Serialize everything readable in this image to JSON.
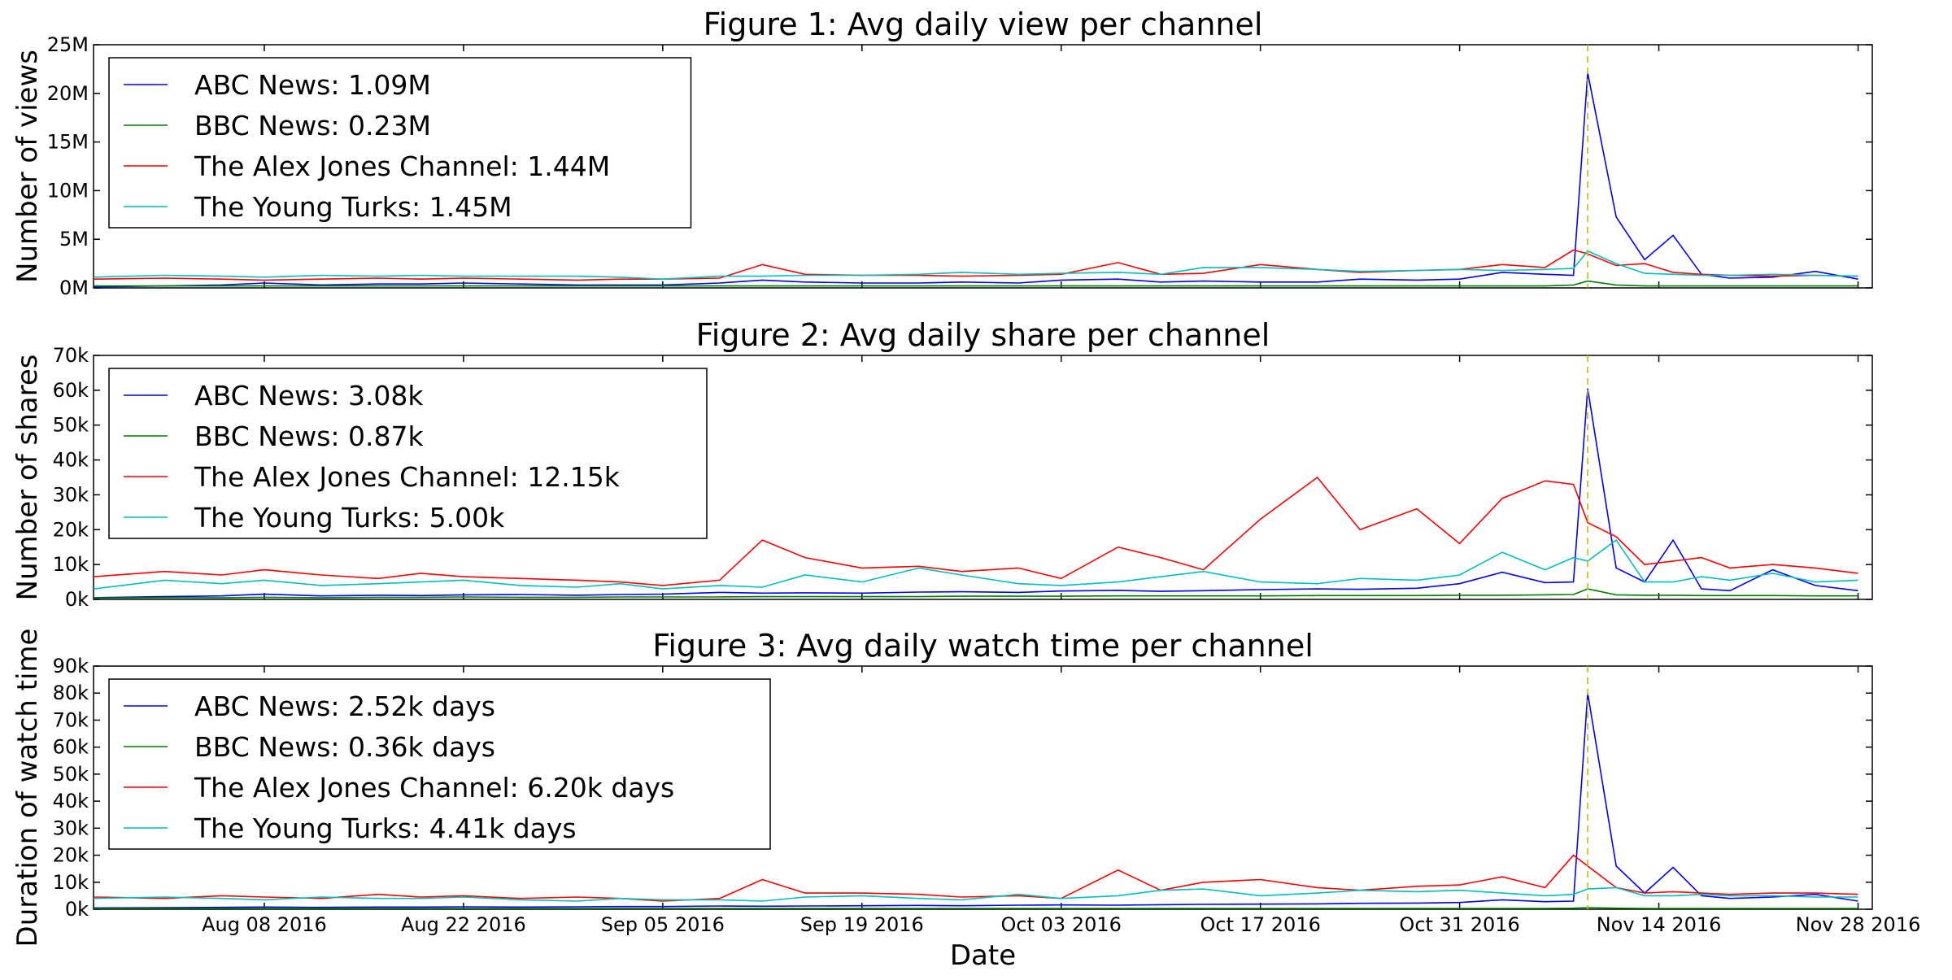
{
  "chart_data": [
    {
      "type": "line",
      "title": "Figure 1: Avg daily view per channel",
      "ylabel": "Number of views",
      "xlabel": "",
      "x": [
        "2016-07-27",
        "2016-08-01",
        "2016-08-05",
        "2016-08-08",
        "2016-08-12",
        "2016-08-16",
        "2016-08-19",
        "2016-08-22",
        "2016-08-26",
        "2016-08-30",
        "2016-09-02",
        "2016-09-05",
        "2016-09-09",
        "2016-09-12",
        "2016-09-15",
        "2016-09-19",
        "2016-09-23",
        "2016-09-26",
        "2016-09-30",
        "2016-10-03",
        "2016-10-07",
        "2016-10-10",
        "2016-10-13",
        "2016-10-17",
        "2016-10-21",
        "2016-10-24",
        "2016-10-28",
        "2016-10-31",
        "2016-11-03",
        "2016-11-06",
        "2016-11-08",
        "2016-11-09",
        "2016-11-11",
        "2016-11-13",
        "2016-11-15",
        "2016-11-17",
        "2016-11-19",
        "2016-11-22",
        "2016-11-25",
        "2016-11-28"
      ],
      "series": [
        {
          "name": "ABC News: 1.09M",
          "color": "#0000ff",
          "values": [
            0.1,
            0.2,
            0.3,
            0.5,
            0.3,
            0.4,
            0.4,
            0.5,
            0.4,
            0.3,
            0.3,
            0.3,
            0.5,
            0.8,
            0.6,
            0.5,
            0.5,
            0.6,
            0.5,
            0.8,
            0.9,
            0.6,
            0.7,
            0.6,
            0.6,
            0.9,
            0.8,
            0.9,
            1.6,
            1.4,
            1.3,
            22.1,
            7.3,
            2.9,
            5.4,
            1.4,
            1.0,
            1.1,
            1.7,
            0.9
          ]
        },
        {
          "name": "BBC News: 0.23M",
          "color": "#008000",
          "values": [
            0.2,
            0.2,
            0.2,
            0.2,
            0.2,
            0.2,
            0.2,
            0.2,
            0.2,
            0.2,
            0.2,
            0.2,
            0.2,
            0.2,
            0.2,
            0.2,
            0.2,
            0.2,
            0.2,
            0.2,
            0.2,
            0.2,
            0.2,
            0.2,
            0.2,
            0.2,
            0.2,
            0.2,
            0.2,
            0.2,
            0.3,
            0.7,
            0.3,
            0.2,
            0.2,
            0.2,
            0.2,
            0.2,
            0.2,
            0.2
          ]
        },
        {
          "name": "The Alex Jones Channel: 1.44M",
          "color": "#ff0000",
          "values": [
            0.9,
            1.0,
            0.9,
            0.8,
            0.9,
            1.0,
            0.9,
            1.0,
            0.9,
            0.8,
            0.9,
            0.9,
            1.0,
            2.4,
            1.4,
            1.3,
            1.3,
            1.2,
            1.3,
            1.4,
            2.6,
            1.4,
            1.5,
            2.4,
            1.9,
            1.6,
            1.8,
            1.9,
            2.4,
            2.1,
            3.9,
            3.5,
            2.3,
            2.5,
            1.6,
            1.4,
            1.3,
            1.2,
            1.3,
            1.2
          ]
        },
        {
          "name": "The Young Turks: 1.45M",
          "color": "#00bfbf",
          "values": [
            1.1,
            1.3,
            1.2,
            1.1,
            1.3,
            1.2,
            1.3,
            1.2,
            1.2,
            1.2,
            1.1,
            0.9,
            1.2,
            1.2,
            1.3,
            1.3,
            1.4,
            1.6,
            1.4,
            1.5,
            1.6,
            1.4,
            2.1,
            2.1,
            1.9,
            1.7,
            1.8,
            1.9,
            1.8,
            1.9,
            2.0,
            3.8,
            2.5,
            1.5,
            1.4,
            1.3,
            1.3,
            1.4,
            1.3,
            1.2
          ]
        }
      ],
      "ylim": [
        0,
        25
      ],
      "ytick_labels": [
        "0M",
        "5M",
        "10M",
        "15M",
        "20M",
        "25M"
      ],
      "xtick_labels": [
        "Aug 08 2016",
        "Aug 22 2016",
        "Sep 05 2016",
        "Sep 19 2016",
        "Oct 03 2016",
        "Oct 17 2016",
        "Oct 31 2016",
        "Nov 14 2016",
        "Nov 28 2016"
      ],
      "vline_x": "2016-11-09",
      "legend": "upper-left",
      "grid": false
    },
    {
      "type": "line",
      "title": "Figure 2: Avg daily share per channel",
      "ylabel": "Number of shares",
      "xlabel": "",
      "x": [
        "2016-07-27",
        "2016-08-01",
        "2016-08-05",
        "2016-08-08",
        "2016-08-12",
        "2016-08-16",
        "2016-08-19",
        "2016-08-22",
        "2016-08-26",
        "2016-08-30",
        "2016-09-02",
        "2016-09-05",
        "2016-09-09",
        "2016-09-12",
        "2016-09-15",
        "2016-09-19",
        "2016-09-23",
        "2016-09-26",
        "2016-09-30",
        "2016-10-03",
        "2016-10-07",
        "2016-10-10",
        "2016-10-13",
        "2016-10-17",
        "2016-10-21",
        "2016-10-24",
        "2016-10-28",
        "2016-10-31",
        "2016-11-03",
        "2016-11-06",
        "2016-11-08",
        "2016-11-09",
        "2016-11-11",
        "2016-11-13",
        "2016-11-15",
        "2016-11-17",
        "2016-11-19",
        "2016-11-22",
        "2016-11-25",
        "2016-11-28"
      ],
      "series": [
        {
          "name": "ABC News: 3.08k",
          "color": "#0000ff",
          "values": [
            0.5,
            0.8,
            1.0,
            1.5,
            1.0,
            1.2,
            1.1,
            1.3,
            1.4,
            1.2,
            1.4,
            1.5,
            2.0,
            1.8,
            1.9,
            1.8,
            2.1,
            2.2,
            2.0,
            2.4,
            2.6,
            2.3,
            2.5,
            2.8,
            3.0,
            2.9,
            3.2,
            4.5,
            7.8,
            4.8,
            5.0,
            60.5,
            9.0,
            5.0,
            17.0,
            3.0,
            2.5,
            8.5,
            4.0,
            2.5
          ]
        },
        {
          "name": "BBC News: 0.87k",
          "color": "#008000",
          "values": [
            0.4,
            0.5,
            0.5,
            0.6,
            0.5,
            0.6,
            0.6,
            0.7,
            0.6,
            0.6,
            0.7,
            0.7,
            0.7,
            0.8,
            0.8,
            0.8,
            0.8,
            0.9,
            0.9,
            0.9,
            1.0,
            1.0,
            1.0,
            1.0,
            1.1,
            1.1,
            1.1,
            1.2,
            1.2,
            1.3,
            1.4,
            3.0,
            1.3,
            1.2,
            1.2,
            1.1,
            1.1,
            1.1,
            1.0,
            1.0
          ]
        },
        {
          "name": "The Alex Jones Channel: 12.15k",
          "color": "#ff0000",
          "values": [
            6.5,
            8.0,
            7.0,
            8.5,
            7.0,
            6.0,
            7.5,
            6.5,
            6.0,
            5.5,
            5.0,
            4.0,
            5.5,
            17.0,
            12.0,
            9.0,
            9.5,
            8.0,
            9.0,
            6.0,
            15.0,
            12.0,
            8.5,
            23.0,
            35.0,
            20.0,
            26.0,
            16.0,
            29.0,
            34.0,
            33.0,
            22.0,
            18.0,
            10.0,
            11.0,
            12.0,
            9.0,
            10.0,
            9.0,
            7.5
          ]
        },
        {
          "name": "The Young Turks: 5.00k",
          "color": "#00bfbf",
          "values": [
            3.0,
            5.5,
            4.5,
            5.5,
            4.0,
            4.5,
            5.0,
            5.5,
            4.0,
            3.5,
            4.5,
            3.0,
            4.0,
            3.5,
            7.0,
            5.0,
            9.0,
            7.0,
            4.5,
            4.0,
            5.0,
            6.5,
            8.0,
            5.0,
            4.5,
            6.0,
            5.5,
            7.0,
            13.5,
            8.5,
            12.0,
            11.0,
            17.0,
            5.0,
            5.0,
            6.5,
            5.5,
            7.5,
            5.0,
            5.5
          ]
        }
      ],
      "ylim": [
        0,
        70
      ],
      "ytick_labels": [
        "0k",
        "10k",
        "20k",
        "30k",
        "40k",
        "50k",
        "60k",
        "70k"
      ],
      "xtick_labels": [
        "Aug 08 2016",
        "Aug 22 2016",
        "Sep 05 2016",
        "Sep 19 2016",
        "Oct 03 2016",
        "Oct 17 2016",
        "Oct 31 2016",
        "Nov 14 2016",
        "Nov 28 2016"
      ],
      "vline_x": "2016-11-09",
      "legend": "upper-left",
      "grid": false
    },
    {
      "type": "line",
      "title": "Figure 3: Avg daily watch time per channel",
      "ylabel": "Duration of watch time",
      "xlabel": "Date",
      "x": [
        "2016-07-27",
        "2016-08-01",
        "2016-08-05",
        "2016-08-08",
        "2016-08-12",
        "2016-08-16",
        "2016-08-19",
        "2016-08-22",
        "2016-08-26",
        "2016-08-30",
        "2016-09-02",
        "2016-09-05",
        "2016-09-09",
        "2016-09-12",
        "2016-09-15",
        "2016-09-19",
        "2016-09-23",
        "2016-09-26",
        "2016-09-30",
        "2016-10-03",
        "2016-10-07",
        "2016-10-10",
        "2016-10-13",
        "2016-10-17",
        "2016-10-21",
        "2016-10-24",
        "2016-10-28",
        "2016-10-31",
        "2016-11-03",
        "2016-11-06",
        "2016-11-08",
        "2016-11-09",
        "2016-11-11",
        "2016-11-13",
        "2016-11-15",
        "2016-11-17",
        "2016-11-19",
        "2016-11-22",
        "2016-11-25",
        "2016-11-28"
      ],
      "series": [
        {
          "name": "ABC News: 2.52k days",
          "color": "#0000ff",
          "values": [
            0.5,
            0.6,
            0.7,
            0.8,
            0.7,
            0.8,
            0.8,
            0.9,
            0.8,
            0.9,
            1.0,
            1.0,
            1.2,
            1.1,
            1.2,
            1.3,
            1.4,
            1.3,
            1.5,
            1.6,
            1.5,
            1.7,
            1.8,
            1.9,
            2.0,
            2.2,
            2.3,
            2.5,
            3.5,
            2.8,
            3.0,
            80.0,
            16.0,
            6.0,
            15.5,
            5.0,
            4.0,
            4.5,
            5.5,
            3.0
          ]
        },
        {
          "name": "BBC News: 0.36k days",
          "color": "#008000",
          "values": [
            0.3,
            0.3,
            0.3,
            0.3,
            0.3,
            0.3,
            0.3,
            0.3,
            0.3,
            0.3,
            0.3,
            0.3,
            0.3,
            0.3,
            0.3,
            0.3,
            0.3,
            0.3,
            0.3,
            0.3,
            0.3,
            0.3,
            0.3,
            0.3,
            0.3,
            0.3,
            0.3,
            0.3,
            0.3,
            0.3,
            0.4,
            0.6,
            0.4,
            0.3,
            0.3,
            0.3,
            0.3,
            0.3,
            0.3,
            0.3
          ]
        },
        {
          "name": "The Alex Jones Channel: 6.20k days",
          "color": "#ff0000",
          "values": [
            4.5,
            4.0,
            5.0,
            4.5,
            4.0,
            5.5,
            4.5,
            5.0,
            4.0,
            4.5,
            4.0,
            3.0,
            4.0,
            11.0,
            6.0,
            6.0,
            5.5,
            4.5,
            5.0,
            4.0,
            14.5,
            7.0,
            10.0,
            11.0,
            8.0,
            7.0,
            8.5,
            9.0,
            12.0,
            8.0,
            20.0,
            16.0,
            8.0,
            6.0,
            6.5,
            6.0,
            5.5,
            6.0,
            6.0,
            5.5
          ]
        },
        {
          "name": "The Young Turks: 4.41k days",
          "color": "#00bfbf",
          "values": [
            4.0,
            4.5,
            4.0,
            3.5,
            4.5,
            4.0,
            4.0,
            4.5,
            3.5,
            3.0,
            4.0,
            3.5,
            3.5,
            3.0,
            4.5,
            5.0,
            4.0,
            3.5,
            5.5,
            4.0,
            5.0,
            7.0,
            7.5,
            5.0,
            6.0,
            7.0,
            6.5,
            7.0,
            6.0,
            5.0,
            5.5,
            7.5,
            8.0,
            5.0,
            5.0,
            5.5,
            5.0,
            5.0,
            4.5,
            4.5
          ]
        }
      ],
      "ylim": [
        0,
        90
      ],
      "ytick_labels": [
        "0k",
        "10k",
        "20k",
        "30k",
        "40k",
        "50k",
        "60k",
        "70k",
        "80k",
        "90k"
      ],
      "xtick_labels": [
        "Aug 08 2016",
        "Aug 22 2016",
        "Sep 05 2016",
        "Sep 19 2016",
        "Oct 03 2016",
        "Oct 17 2016",
        "Oct 31 2016",
        "Nov 14 2016",
        "Nov 28 2016"
      ],
      "vline_x": "2016-11-09",
      "legend": "upper-left",
      "grid": false
    }
  ]
}
